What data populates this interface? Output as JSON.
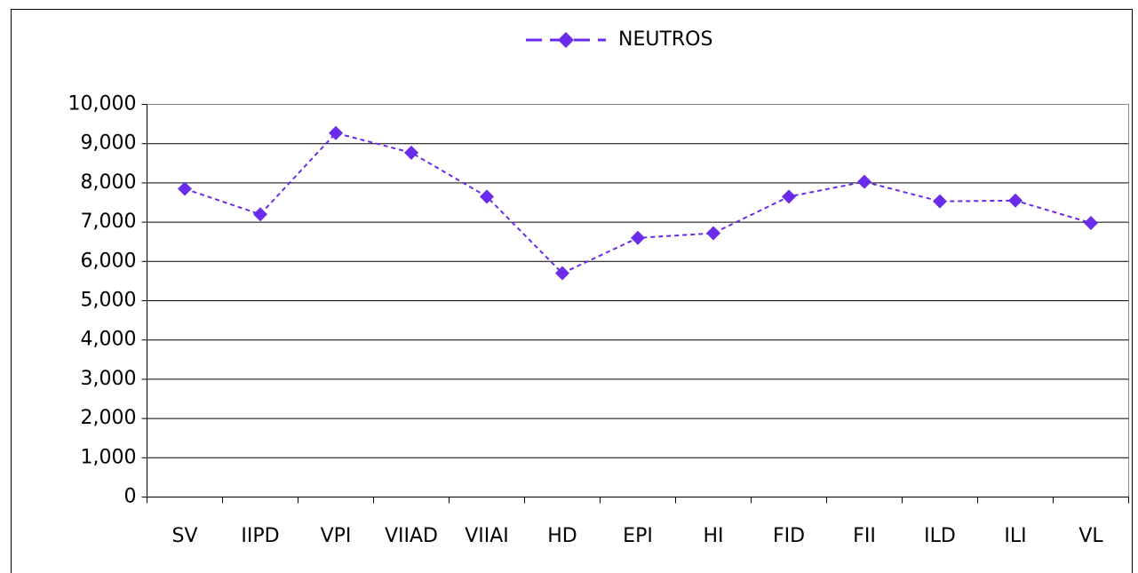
{
  "chart_data": {
    "type": "line",
    "categories": [
      "SV",
      "IIPD",
      "VPI",
      "VIIAD",
      "VIIAI",
      "HD",
      "EPI",
      "HI",
      "FID",
      "FII",
      "ILD",
      "ILI",
      "VL"
    ],
    "series": [
      {
        "name": "NEUTROS",
        "color": "#6a2bea",
        "values": [
          7850,
          7200,
          9270,
          8770,
          7650,
          5700,
          6600,
          6720,
          7650,
          8030,
          7530,
          7550,
          6980
        ]
      }
    ],
    "ylim": [
      0,
      10000
    ],
    "yticks": [
      0,
      {
        "value": 1000,
        "label": "1,000"
      },
      {
        "value": 2000,
        "label": "2,000"
      },
      {
        "value": 3000,
        "label": "3,000"
      },
      {
        "value": 4000,
        "label": "4,000"
      },
      {
        "value": 5000,
        "label": "5,000"
      },
      {
        "value": 6000,
        "label": "6,000"
      },
      {
        "value": 7000,
        "label": "7,000"
      },
      {
        "value": 8000,
        "label": "8,000"
      },
      {
        "value": 9000,
        "label": "9,000"
      },
      {
        "value": 10000,
        "label": "10,000"
      }
    ],
    "grid": true,
    "legend": "top"
  }
}
